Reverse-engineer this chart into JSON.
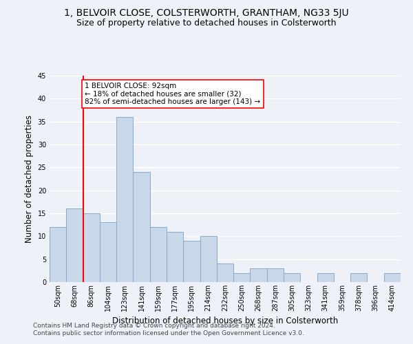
{
  "title1": "1, BELVOIR CLOSE, COLSTERWORTH, GRANTHAM, NG33 5JU",
  "title2": "Size of property relative to detached houses in Colsterworth",
  "xlabel": "Distribution of detached houses by size in Colsterworth",
  "ylabel": "Number of detached properties",
  "footnote1": "Contains HM Land Registry data © Crown copyright and database right 2024.",
  "footnote2": "Contains public sector information licensed under the Open Government Licence v3.0.",
  "bin_labels": [
    "50sqm",
    "68sqm",
    "86sqm",
    "104sqm",
    "123sqm",
    "141sqm",
    "159sqm",
    "177sqm",
    "195sqm",
    "214sqm",
    "232sqm",
    "250sqm",
    "268sqm",
    "287sqm",
    "305sqm",
    "323sqm",
    "341sqm",
    "359sqm",
    "378sqm",
    "396sqm",
    "414sqm"
  ],
  "bar_heights": [
    12,
    16,
    15,
    13,
    36,
    24,
    12,
    11,
    9,
    10,
    4,
    2,
    3,
    3,
    2,
    0,
    2,
    0,
    2,
    0,
    2
  ],
  "bar_color": "#c8d8e8",
  "bar_edge_color": "#8aaac8",
  "vline_x": 2,
  "vline_color": "red",
  "annotation_text": "1 BELVOIR CLOSE: 92sqm\n← 18% of detached houses are smaller (32)\n82% of semi-detached houses are larger (143) →",
  "annotation_box_color": "white",
  "annotation_box_edge": "red",
  "ylim": [
    0,
    45
  ],
  "yticks": [
    0,
    5,
    10,
    15,
    20,
    25,
    30,
    35,
    40,
    45
  ],
  "background_color": "#eef2f8",
  "grid_color": "#ffffff",
  "title1_fontsize": 10,
  "title2_fontsize": 9,
  "xlabel_fontsize": 8.5,
  "ylabel_fontsize": 8.5,
  "footnote_fontsize": 6.5,
  "tick_fontsize": 7,
  "annotation_fontsize": 7.5
}
